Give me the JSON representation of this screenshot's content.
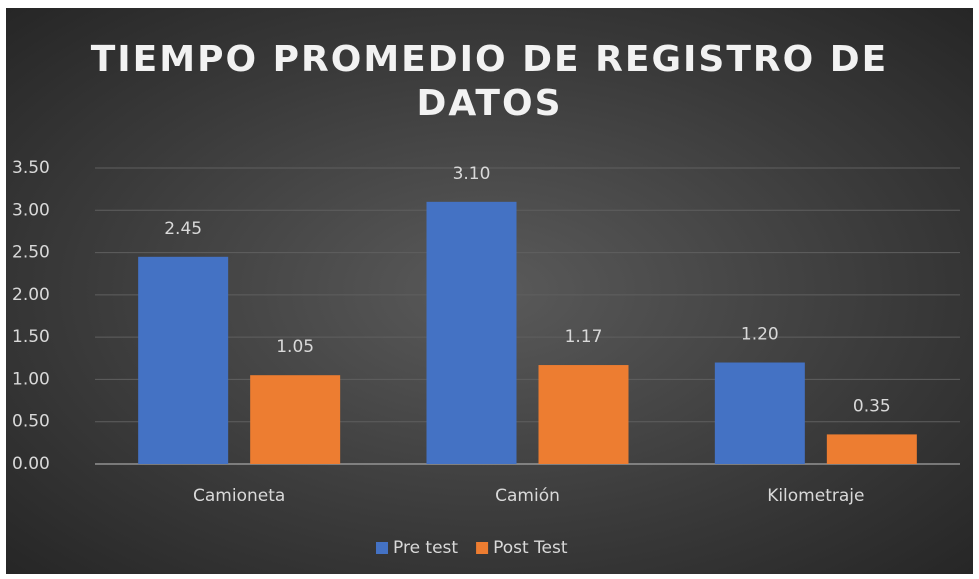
{
  "chart_data": {
    "type": "bar",
    "title": "TIEMPO PROMEDIO DE REGISTRO DE DATOS",
    "categories": [
      "Camioneta",
      "Camión",
      "Kilometraje"
    ],
    "series": [
      {
        "name": "Pre test",
        "color": "#4472c4",
        "values": [
          2.45,
          3.1,
          1.2
        ],
        "value_labels": [
          "2.45",
          "3.10",
          "1.20"
        ]
      },
      {
        "name": "Post Test",
        "color": "#ed7d31",
        "values": [
          1.05,
          1.17,
          0.35
        ],
        "value_labels": [
          "1.05",
          "1.17",
          "0.35"
        ]
      }
    ],
    "ylim": [
      0,
      3.5
    ],
    "yticks": [
      {
        "value": 0,
        "label": "0.00"
      },
      {
        "value": 0.5,
        "label": "0.50"
      },
      {
        "value": 1,
        "label": "1.00"
      },
      {
        "value": 1.5,
        "label": "1.50"
      },
      {
        "value": 2,
        "label": "2.00"
      },
      {
        "value": 2.5,
        "label": "2.50"
      },
      {
        "value": 3,
        "label": "3.00"
      },
      {
        "value": 3.5,
        "label": "3.50"
      }
    ],
    "grid": true,
    "legend": "bottom"
  }
}
